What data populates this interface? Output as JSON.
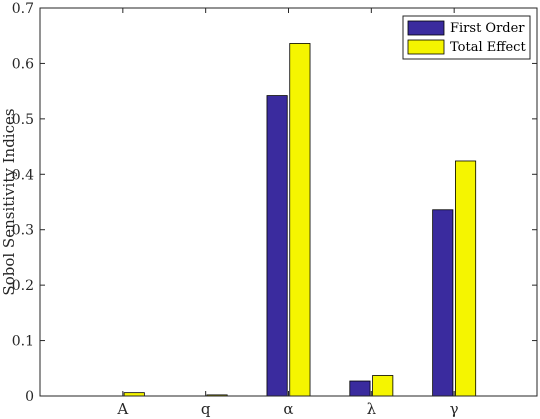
{
  "chart_data": {
    "type": "bar",
    "categories": [
      "A",
      "q",
      "α",
      "λ",
      "γ"
    ],
    "series": [
      {
        "name": "First Order",
        "values": [
          0.0,
          0.0,
          0.542,
          0.027,
          0.336
        ],
        "color": "#3a2b9e"
      },
      {
        "name": "Total Effect",
        "values": [
          0.006,
          0.002,
          0.636,
          0.037,
          0.424
        ],
        "color": "#f5f500"
      }
    ],
    "title": "",
    "xlabel": "",
    "ylabel": "Sobol Sensitivity Indices",
    "ylim": [
      0,
      0.7
    ],
    "yticks": [
      0,
      0.1,
      0.2,
      0.3,
      0.4,
      0.5,
      0.6,
      0.7
    ],
    "ytick_labels": [
      "0",
      "0.1",
      "0.2",
      "0.3",
      "0.4",
      "0.5",
      "0.6",
      "0.7"
    ],
    "grid": false,
    "legend_position": "top-right"
  }
}
